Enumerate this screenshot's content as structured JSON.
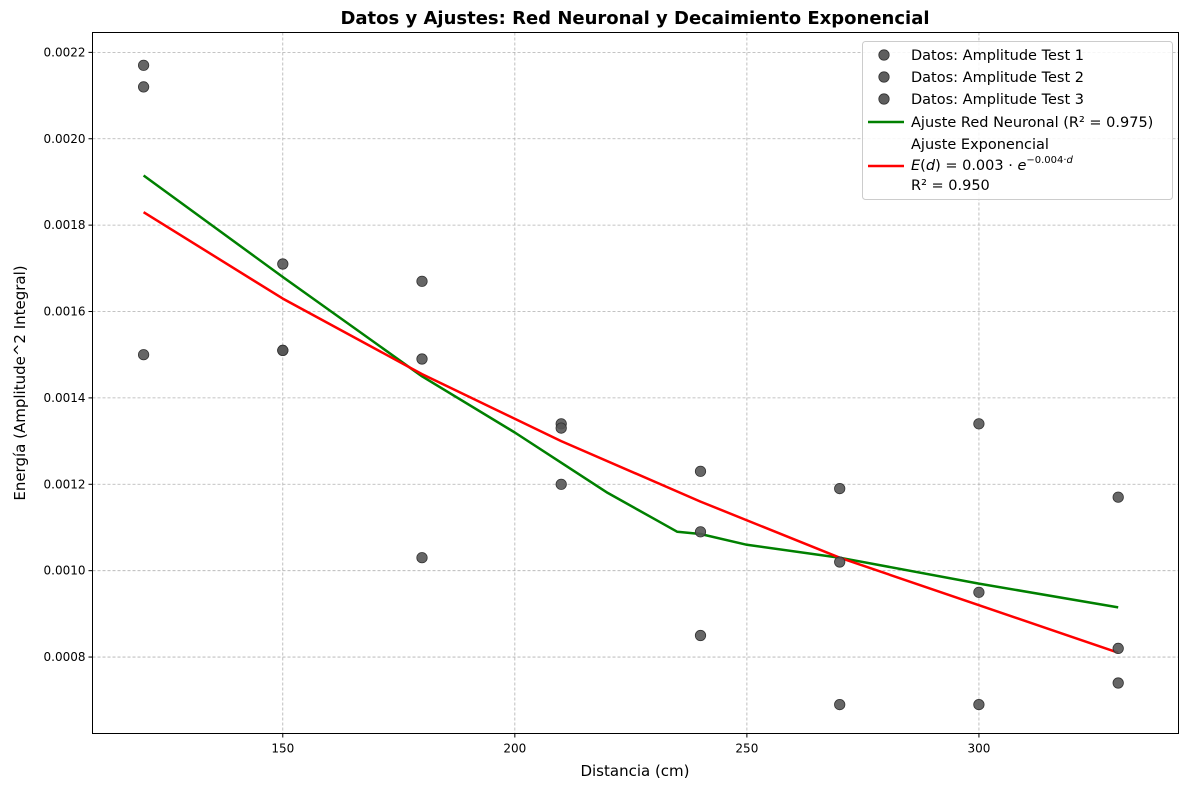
{
  "chart_data": {
    "type": "scatter",
    "title": "Datos y Ajustes: Red Neuronal y Decaimiento Exponencial",
    "xlabel": "Distancia (cm)",
    "ylabel": "Energía (Amplitude^2 Integral)",
    "xlim": [
      109,
      343
    ],
    "ylim": [
      0.000623,
      0.002246
    ],
    "xticks": [
      150,
      200,
      250,
      300
    ],
    "yticks": [
      0.0008,
      0.001,
      0.0012,
      0.0014,
      0.0016,
      0.0018,
      0.002,
      0.0022
    ],
    "xtick_labels": [
      "150",
      "200",
      "250",
      "300"
    ],
    "ytick_labels": [
      "0.0008",
      "0.0010",
      "0.0012",
      "0.0014",
      "0.0016",
      "0.0018",
      "0.0020",
      "0.0022"
    ],
    "grid": true,
    "legend_position": "top-right",
    "scatter_series": [
      {
        "name": "Datos: Amplitude Test 1",
        "color": "#555555",
        "points": [
          [
            120,
            0.00217
          ],
          [
            150,
            0.00171
          ],
          [
            180,
            0.00167
          ],
          [
            210,
            0.00134
          ],
          [
            240,
            0.00123
          ],
          [
            270,
            0.00119
          ],
          [
            300,
            0.00134
          ],
          [
            330,
            0.00117
          ]
        ]
      },
      {
        "name": "Datos: Amplitude Test 2",
        "color": "#555555",
        "points": [
          [
            120,
            0.00212
          ],
          [
            150,
            0.00151
          ],
          [
            180,
            0.00149
          ],
          [
            210,
            0.00133
          ],
          [
            240,
            0.00109
          ],
          [
            270,
            0.00102
          ],
          [
            300,
            0.00095
          ],
          [
            330,
            0.00082
          ]
        ]
      },
      {
        "name": "Datos: Amplitude Test 3",
        "color": "#555555",
        "points": [
          [
            120,
            0.0015
          ],
          [
            150,
            0.00151
          ],
          [
            180,
            0.00103
          ],
          [
            210,
            0.0012
          ],
          [
            240,
            0.00085
          ],
          [
            270,
            0.00069
          ],
          [
            300,
            0.00069
          ],
          [
            330,
            0.00074
          ]
        ]
      }
    ],
    "line_series": [
      {
        "name": "Ajuste Red Neuronal (R² = 0.975)",
        "color": "#008000",
        "points": [
          [
            120,
            0.001915
          ],
          [
            150,
            0.00168
          ],
          [
            180,
            0.00145
          ],
          [
            200,
            0.00132
          ],
          [
            210,
            0.00125
          ],
          [
            220,
            0.00118
          ],
          [
            230,
            0.00112
          ],
          [
            235,
            0.00109
          ],
          [
            240,
            0.001085
          ],
          [
            250,
            0.00106
          ],
          [
            270,
            0.00103
          ],
          [
            300,
            0.00097
          ],
          [
            330,
            0.000915
          ]
        ]
      },
      {
        "name": "Ajuste Exponencial",
        "formula_prefix": "E",
        "formula_var": "d",
        "formula_coef": "0.003",
        "formula_exp": "−0.004·",
        "r2": "R² = 0.950",
        "color": "#ff0000",
        "points": [
          [
            120,
            0.00183
          ],
          [
            150,
            0.00163
          ],
          [
            180,
            0.001455
          ],
          [
            210,
            0.0013
          ],
          [
            240,
            0.00116
          ],
          [
            270,
            0.00103
          ],
          [
            300,
            0.00092
          ],
          [
            330,
            0.00081
          ]
        ]
      }
    ]
  }
}
